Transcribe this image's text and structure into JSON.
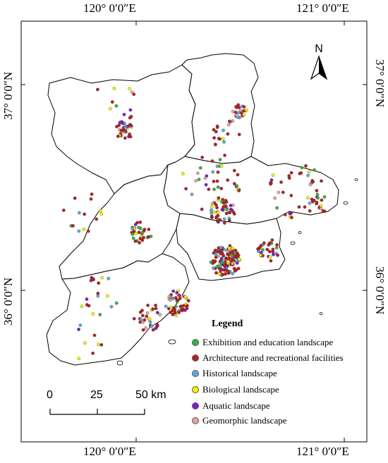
{
  "coordinates": {
    "top": [
      "120° 0′0″E",
      "121° 0′0″E"
    ],
    "bottom": [
      "120° 0′0″E",
      "121° 0′0″E"
    ],
    "left": [
      "37° 0′0″N",
      "36° 0′0″N"
    ],
    "right": [
      "37° 0′0″N",
      "36° 0′0″N"
    ]
  },
  "north_arrow": {
    "label": "N"
  },
  "legend": {
    "title": "Legend",
    "items": [
      {
        "label": "Exhibition and education landscape",
        "color": "#3cb043"
      },
      {
        "label": "Architecture and recreational facilities",
        "color": "#b22222"
      },
      {
        "label": "Historical landscape",
        "color": "#5aa9e6"
      },
      {
        "label": "Biological landscape",
        "color": "#f2f200"
      },
      {
        "label": "Aquatic landscape",
        "color": "#7a1fd6"
      },
      {
        "label": "Geomorphic landscape",
        "color": "#e8a0a0"
      }
    ]
  },
  "scale_bar": {
    "ticks": [
      "0",
      "25",
      "50 km"
    ]
  },
  "colors": {
    "boundary": "#000000",
    "map_fill": "#ffffff"
  }
}
